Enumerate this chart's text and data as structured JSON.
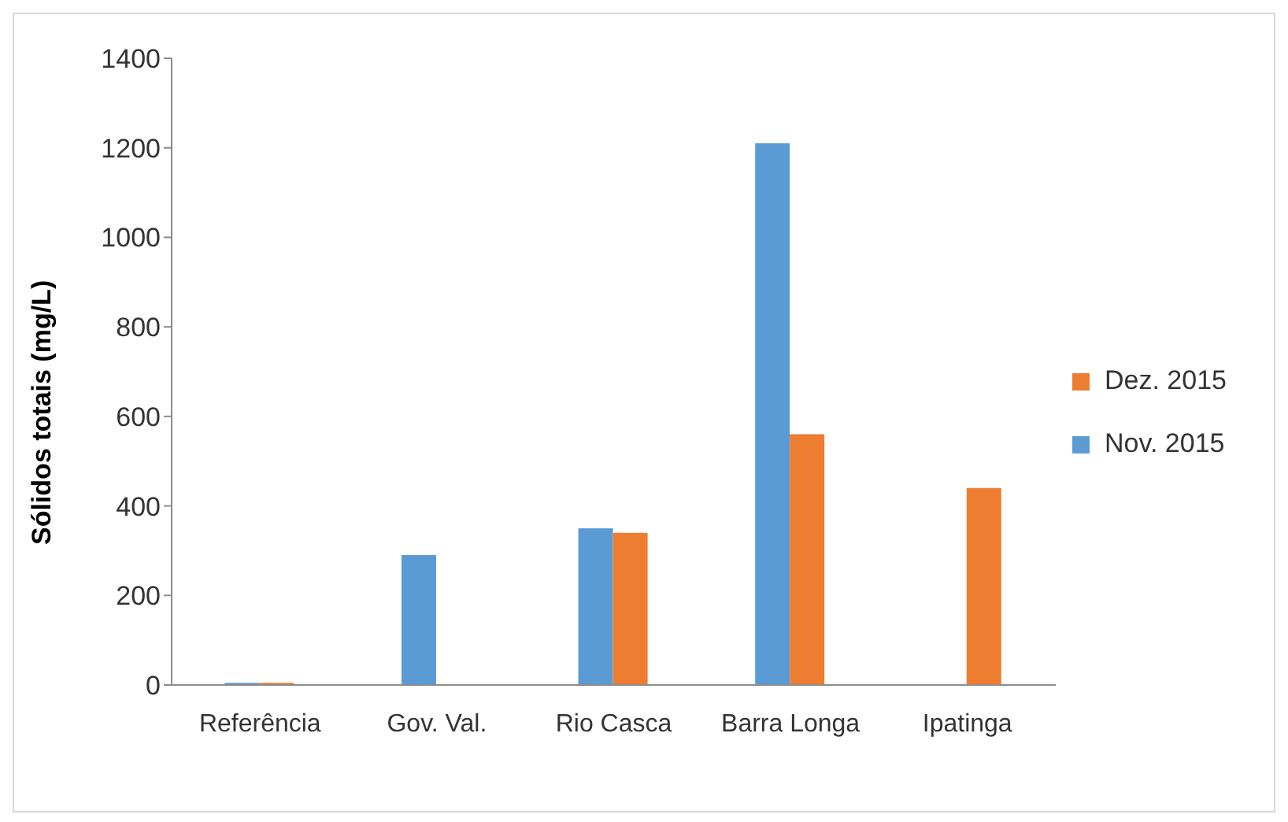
{
  "chart_data": {
    "type": "bar",
    "ylabel": "Sólidos totais (mg/L)",
    "categories": [
      "Referência",
      "Gov. Val.",
      "Rio Casca",
      "Barra Longa",
      "Ipatinga"
    ],
    "series": [
      {
        "name": "Nov. 2015",
        "color": "#5b9bd5",
        "values": [
          5,
          290,
          350,
          1210,
          null
        ]
      },
      {
        "name": "Dez. 2015",
        "color": "#ed7d31",
        "values": [
          5,
          null,
          340,
          560,
          440
        ]
      }
    ],
    "ylim": [
      0,
      1400
    ],
    "yticks": [
      0,
      200,
      400,
      600,
      800,
      1000,
      1200,
      1400
    ],
    "grid": false,
    "legend": "right"
  }
}
